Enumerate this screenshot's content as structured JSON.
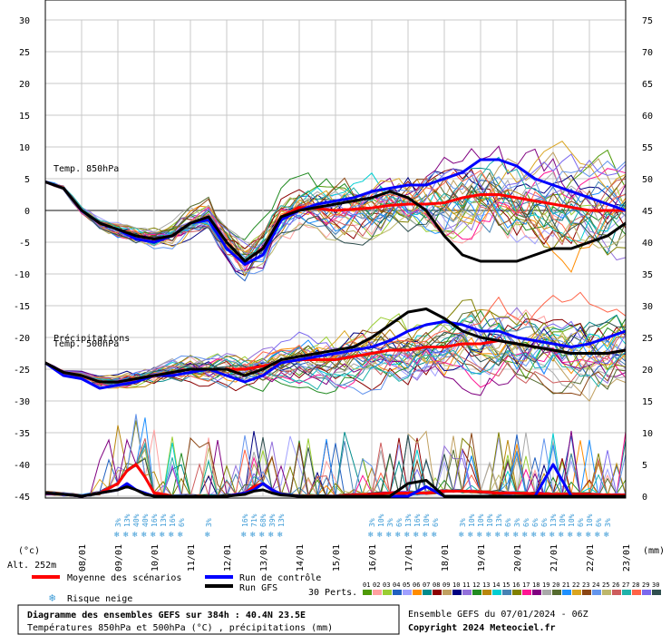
{
  "chart_data": {
    "type": "line",
    "title": "Diagramme des ensembles GEFS sur 384h : 40.4N 23.5E",
    "subtitle": "Températures 850hPa et 500hPa (°C) , précipitations (mm)",
    "xlabel": "",
    "ylabel_left_unit": "(°c)",
    "ylabel_right_unit": "(mm)",
    "altitude": "Alt. 252m",
    "ensemble_info": "Ensemble GEFS du 07/01/2024 - 06Z",
    "copyright": "Copyright 2024 Meteociel.fr",
    "x_ticks": [
      "08/01",
      "09/01",
      "10/01",
      "11/01",
      "12/01",
      "13/01",
      "14/01",
      "15/01",
      "16/01",
      "17/01",
      "18/01",
      "19/01",
      "20/01",
      "21/01",
      "22/01",
      "23/01"
    ],
    "x_range_hours": [
      0,
      384
    ],
    "left_axis": {
      "ticks": [
        "30",
        "25",
        "20",
        "15",
        "10",
        "5",
        "0",
        "-5",
        "-10",
        "-15",
        "-20",
        "-25",
        "-30",
        "-35",
        "-40",
        "-45"
      ],
      "range": [
        -45,
        30
      ]
    },
    "right_axis": {
      "ticks": [
        "75",
        "70",
        "65",
        "60",
        "55",
        "50",
        "45",
        "40",
        "35",
        "30",
        "25",
        "20",
        "15",
        "10",
        "5",
        "0"
      ],
      "range": [
        0,
        75
      ]
    },
    "panel_labels": {
      "t850": "Temp. 850hPa",
      "t500": "Temp. 500hPa",
      "precip": "Précipitations"
    },
    "legend": {
      "mean": "Moyenne des scénarios",
      "control": "Run de contrôle",
      "gfs": "Run GFS",
      "snow": "Risque neige",
      "perts": "30 Perts."
    },
    "perturbations": [
      "01",
      "02",
      "03",
      "04",
      "05",
      "06",
      "07",
      "08",
      "09",
      "10",
      "11",
      "12",
      "13",
      "14",
      "15",
      "16",
      "17",
      "18",
      "19",
      "20",
      "21",
      "22",
      "23",
      "24",
      "25",
      "26",
      "27",
      "28",
      "29",
      "30"
    ],
    "pert_colors": [
      "#4e9a06",
      "#ffa0a0",
      "#9acd32",
      "#2060c0",
      "#a0a0ff",
      "#ff8c00",
      "#008b8b",
      "#8b0000",
      "#c0a060",
      "#000080",
      "#9370db",
      "#228b22",
      "#b8860b",
      "#00ced1",
      "#4682b4",
      "#808000",
      "#ff1493",
      "#800080",
      "#a9a9a9",
      "#556b2f",
      "#1e90ff",
      "#daa520",
      "#8b4513",
      "#6495ed",
      "#bdb76b",
      "#cd5c5c",
      "#20b2aa",
      "#ff6347",
      "#7b68ee",
      "#2f4f4f"
    ],
    "series": [
      {
        "name": "Moyenne des scénarios",
        "panel": "t850",
        "color": "#ff0000",
        "x": [
          0,
          12,
          24,
          36,
          48,
          60,
          72,
          84,
          96,
          108,
          120,
          132,
          144,
          156,
          168,
          180,
          192,
          204,
          216,
          228,
          240,
          252,
          264,
          276,
          288,
          300,
          312,
          324,
          336,
          348,
          360,
          372,
          384
        ],
        "y": [
          4.5,
          3.5,
          0,
          -2,
          -3,
          -4,
          -4.5,
          -4,
          -2,
          -1,
          -5,
          -8,
          -6,
          -1,
          0.5,
          0.3,
          0,
          0.2,
          0.4,
          0.8,
          1,
          1,
          1.2,
          2,
          2.5,
          2.5,
          2,
          1.5,
          1,
          0.5,
          0,
          0,
          0
        ]
      },
      {
        "name": "Run de contrôle",
        "panel": "t850",
        "color": "#0000ff",
        "x": [
          0,
          12,
          24,
          36,
          48,
          60,
          72,
          84,
          96,
          108,
          120,
          132,
          144,
          156,
          168,
          180,
          192,
          204,
          216,
          228,
          240,
          252,
          264,
          276,
          288,
          300,
          312,
          324,
          336,
          348,
          360,
          372,
          384
        ],
        "y": [
          4.5,
          3.5,
          0,
          -2,
          -3,
          -4.5,
          -5,
          -4,
          -2,
          -1.5,
          -6,
          -8.5,
          -7,
          -1.5,
          0,
          1,
          1.5,
          2,
          3,
          3.5,
          4,
          4,
          5,
          6,
          8,
          8,
          7,
          5,
          4,
          3,
          2,
          1,
          0
        ]
      },
      {
        "name": "Run GFS",
        "panel": "t850",
        "color": "#000000",
        "x": [
          0,
          12,
          24,
          36,
          48,
          60,
          72,
          84,
          96,
          108,
          120,
          132,
          144,
          156,
          168,
          180,
          192,
          204,
          216,
          228,
          240,
          252,
          264,
          276,
          288,
          300,
          312,
          324,
          336,
          348,
          360,
          372,
          384
        ],
        "y": [
          4.5,
          3.5,
          0,
          -2,
          -3,
          -4,
          -4.5,
          -4,
          -2,
          -1,
          -5,
          -8,
          -6,
          -1,
          0,
          0.5,
          1,
          1.5,
          2,
          3,
          2,
          0,
          -4,
          -7,
          -8,
          -8,
          -8,
          -7,
          -6,
          -6,
          -5,
          -4,
          -2
        ]
      },
      {
        "name": "Moyenne des scénarios",
        "panel": "t500",
        "color": "#ff0000",
        "x": [
          0,
          12,
          24,
          36,
          48,
          60,
          72,
          84,
          96,
          108,
          120,
          132,
          144,
          156,
          168,
          180,
          192,
          204,
          216,
          228,
          240,
          252,
          264,
          276,
          288,
          300,
          312,
          324,
          336,
          348,
          360,
          372,
          384
        ],
        "y": [
          -24,
          -25.5,
          -26,
          -27,
          -27,
          -26.5,
          -26,
          -25.5,
          -25,
          -25,
          -25,
          -25,
          -24.5,
          -24,
          -23.5,
          -23.5,
          -23.5,
          -23,
          -22.5,
          -22,
          -22,
          -21.5,
          -21.5,
          -21,
          -21,
          -20.5,
          -21,
          -21.5,
          -22,
          -22.5,
          -22.5,
          -22.5,
          -22
        ]
      },
      {
        "name": "Run de contrôle",
        "panel": "t500",
        "color": "#0000ff",
        "x": [
          0,
          12,
          24,
          36,
          48,
          60,
          72,
          84,
          96,
          108,
          120,
          132,
          144,
          156,
          168,
          180,
          192,
          204,
          216,
          228,
          240,
          252,
          264,
          276,
          288,
          300,
          312,
          324,
          336,
          348,
          360,
          372,
          384
        ],
        "y": [
          -24,
          -26,
          -26.5,
          -28,
          -27.5,
          -27,
          -26,
          -26,
          -25.5,
          -25,
          -26,
          -27,
          -26,
          -24,
          -23.5,
          -23,
          -22.5,
          -22,
          -21.5,
          -20.5,
          -19,
          -18,
          -17.5,
          -18,
          -19,
          -19,
          -20,
          -20.5,
          -21,
          -21.5,
          -21,
          -20,
          -19
        ]
      },
      {
        "name": "Run GFS",
        "panel": "t500",
        "color": "#000000",
        "x": [
          0,
          12,
          24,
          36,
          48,
          60,
          72,
          84,
          96,
          108,
          120,
          132,
          144,
          156,
          168,
          180,
          192,
          204,
          216,
          228,
          240,
          252,
          264,
          276,
          288,
          300,
          312,
          324,
          336,
          348,
          360,
          372,
          384
        ],
        "y": [
          -24,
          -25.5,
          -26,
          -27,
          -27,
          -26.5,
          -26,
          -25.5,
          -25,
          -25,
          -25,
          -26,
          -25,
          -23.5,
          -23,
          -22.5,
          -22,
          -21.5,
          -20,
          -18,
          -16,
          -15.5,
          -17,
          -19,
          -20,
          -20.5,
          -21,
          -21.5,
          -22,
          -22.5,
          -22.5,
          -22.5,
          -22
        ]
      },
      {
        "name": "Moyenne des scénarios",
        "panel": "precip",
        "color": "#ff0000",
        "x": [
          0,
          12,
          24,
          36,
          48,
          54,
          60,
          66,
          72,
          84,
          96,
          108,
          120,
          132,
          138,
          144,
          150,
          156,
          168,
          180,
          192,
          204,
          216,
          228,
          240,
          252,
          264,
          276,
          288,
          300,
          312,
          324,
          336,
          348,
          360,
          372,
          384
        ],
        "y": [
          0.5,
          0.3,
          0,
          0.5,
          2,
          4,
          5,
          3,
          0.5,
          0,
          0,
          0,
          0,
          0.5,
          1.5,
          2,
          1,
          0.3,
          0,
          0,
          0,
          0.2,
          0.3,
          0.5,
          0.5,
          0.5,
          0.8,
          0.8,
          0.7,
          0.5,
          0.5,
          0.4,
          0.3,
          0.3,
          0.3,
          0.2,
          0.2
        ]
      },
      {
        "name": "Run de contrôle",
        "panel": "precip",
        "color": "#0000ff",
        "x": [
          0,
          12,
          24,
          36,
          48,
          54,
          60,
          66,
          72,
          84,
          96,
          108,
          120,
          132,
          138,
          144,
          150,
          156,
          168,
          180,
          192,
          204,
          216,
          228,
          240,
          252,
          264,
          276,
          288,
          300,
          312,
          324,
          336,
          348,
          360,
          372,
          384
        ],
        "y": [
          0.5,
          0.3,
          0,
          0.5,
          1,
          2,
          1,
          0.5,
          0,
          0,
          0,
          0,
          0,
          0.5,
          1,
          2,
          1,
          0.3,
          0,
          0,
          0,
          0,
          0,
          0,
          0,
          1.5,
          0,
          0,
          0,
          0,
          0,
          0,
          5,
          0,
          0,
          0,
          0
        ]
      },
      {
        "name": "Run GFS",
        "panel": "precip",
        "color": "#000000",
        "x": [
          0,
          12,
          24,
          36,
          48,
          54,
          60,
          66,
          72,
          84,
          96,
          108,
          120,
          132,
          138,
          144,
          150,
          156,
          168,
          180,
          192,
          204,
          216,
          228,
          240,
          252,
          264,
          276,
          288,
          300,
          312,
          324,
          336,
          348,
          360,
          372,
          384
        ],
        "y": [
          0.5,
          0.3,
          0,
          0.5,
          1,
          1.5,
          1,
          0.3,
          0,
          0,
          0,
          0,
          0,
          0.3,
          0.8,
          1,
          0.5,
          0.2,
          0,
          0,
          0,
          0,
          0,
          0,
          2,
          2.5,
          0,
          0,
          0,
          0,
          0,
          0,
          0,
          0,
          0,
          0,
          0
        ]
      }
    ],
    "snow_risk": [
      {
        "x": 48,
        "pct": "3%"
      },
      {
        "x": 54,
        "pct": "13%"
      },
      {
        "x": 60,
        "pct": "40%"
      },
      {
        "x": 66,
        "pct": "40%"
      },
      {
        "x": 72,
        "pct": "16%"
      },
      {
        "x": 78,
        "pct": "13%"
      },
      {
        "x": 84,
        "pct": "16%"
      },
      {
        "x": 90,
        "pct": "6%"
      },
      {
        "x": 108,
        "pct": "3%"
      },
      {
        "x": 132,
        "pct": "16%"
      },
      {
        "x": 138,
        "pct": "71%"
      },
      {
        "x": 144,
        "pct": "68%"
      },
      {
        "x": 150,
        "pct": "39%"
      },
      {
        "x": 156,
        "pct": "13%"
      },
      {
        "x": 216,
        "pct": "3%"
      },
      {
        "x": 222,
        "pct": "10%"
      },
      {
        "x": 228,
        "pct": "3%"
      },
      {
        "x": 234,
        "pct": "6%"
      },
      {
        "x": 240,
        "pct": "13%"
      },
      {
        "x": 246,
        "pct": "16%"
      },
      {
        "x": 252,
        "pct": "10%"
      },
      {
        "x": 258,
        "pct": "6%"
      },
      {
        "x": 276,
        "pct": "3%"
      },
      {
        "x": 282,
        "pct": "10%"
      },
      {
        "x": 288,
        "pct": "10%"
      },
      {
        "x": 294,
        "pct": "10%"
      },
      {
        "x": 300,
        "pct": "13%"
      },
      {
        "x": 306,
        "pct": "6%"
      },
      {
        "x": 312,
        "pct": "3%"
      },
      {
        "x": 318,
        "pct": "6%"
      },
      {
        "x": 324,
        "pct": "6%"
      },
      {
        "x": 330,
        "pct": "6%"
      },
      {
        "x": 336,
        "pct": "13%"
      },
      {
        "x": 342,
        "pct": "10%"
      },
      {
        "x": 348,
        "pct": "10%"
      },
      {
        "x": 354,
        "pct": "6%"
      },
      {
        "x": 360,
        "pct": "10%"
      },
      {
        "x": 366,
        "pct": "6%"
      },
      {
        "x": 372,
        "pct": "3%"
      }
    ],
    "grid": true
  }
}
